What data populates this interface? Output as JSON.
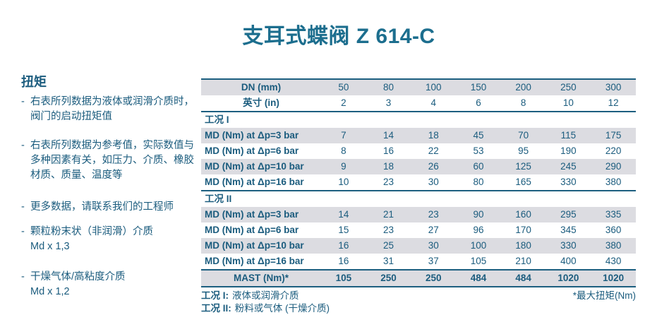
{
  "colors": {
    "text": "#1b5c7e",
    "title": "#1c6e8e",
    "row_stripe": "#dcdce1",
    "table_border": "#1d5f80"
  },
  "page": {
    "title": "支耳式蝶阀 Z 614-C"
  },
  "sidebar": {
    "heading": "扭矩",
    "bullets": [
      {
        "marker": "-",
        "text": "右表所列数据为液体或润滑介质时，阀门的启动扭矩值"
      },
      {
        "marker": "-",
        "text": "右表所列数据为参考值，实际数值与多种因素有关，如压力、介质、橡胶材质、质量、温度等"
      },
      {
        "marker": "-",
        "text": "更多数据，请联系我们的工程师"
      },
      {
        "marker": "-",
        "text": "颗粒粉末状（非润滑）介质",
        "sub": "Md x 1,3"
      },
      {
        "marker": "-",
        "text": "干燥气体/高粘度介质",
        "sub": "Md x 1,2"
      }
    ]
  },
  "table": {
    "header_rows": [
      {
        "label": "DN (mm)",
        "values": [
          "50",
          "80",
          "100",
          "150",
          "200",
          "250",
          "300"
        ]
      },
      {
        "label": "英寸 (in)",
        "values": [
          "2",
          "3",
          "4",
          "6",
          "8",
          "10",
          "12"
        ]
      }
    ],
    "sections": [
      {
        "title": "工况 I",
        "rows": [
          {
            "label": "MD (Nm) at Δp=3 bar",
            "values": [
              "7",
              "14",
              "18",
              "45",
              "70",
              "115",
              "175"
            ]
          },
          {
            "label": "MD (Nm) at Δp=6 bar",
            "values": [
              "8",
              "16",
              "22",
              "53",
              "95",
              "190",
              "220"
            ]
          },
          {
            "label": "MD (Nm) at Δp=10 bar",
            "values": [
              "9",
              "18",
              "26",
              "60",
              "125",
              "245",
              "290"
            ]
          },
          {
            "label": "MD (Nm) at Δp=16 bar",
            "values": [
              "10",
              "23",
              "30",
              "80",
              "165",
              "330",
              "380"
            ]
          }
        ]
      },
      {
        "title": "工况 II",
        "rows": [
          {
            "label": "MD (Nm) at Δp=3 bar",
            "values": [
              "14",
              "21",
              "23",
              "90",
              "160",
              "295",
              "335"
            ]
          },
          {
            "label": "MD (Nm) at Δp=6 bar",
            "values": [
              "15",
              "23",
              "27",
              "96",
              "170",
              "345",
              "360"
            ]
          },
          {
            "label": "MD (Nm) at Δp=10 bar",
            "values": [
              "16",
              "25",
              "30",
              "100",
              "180",
              "330",
              "380"
            ]
          },
          {
            "label": "MD (Nm) at Δp=16 bar",
            "values": [
              "16",
              "31",
              "37",
              "105",
              "210",
              "400",
              "430"
            ]
          }
        ]
      }
    ],
    "summary_row": {
      "label": "MAST (Nm)*",
      "values": [
        "105",
        "250",
        "250",
        "484",
        "484",
        "1020",
        "1020"
      ]
    },
    "notes_left": [
      {
        "label": "工况 I:",
        "text": "液体或润滑介质"
      },
      {
        "label": "工况 II:",
        "text": "粉料或气体 (干燥介质)"
      }
    ],
    "note_right": "*最大扭矩(Nm)"
  }
}
